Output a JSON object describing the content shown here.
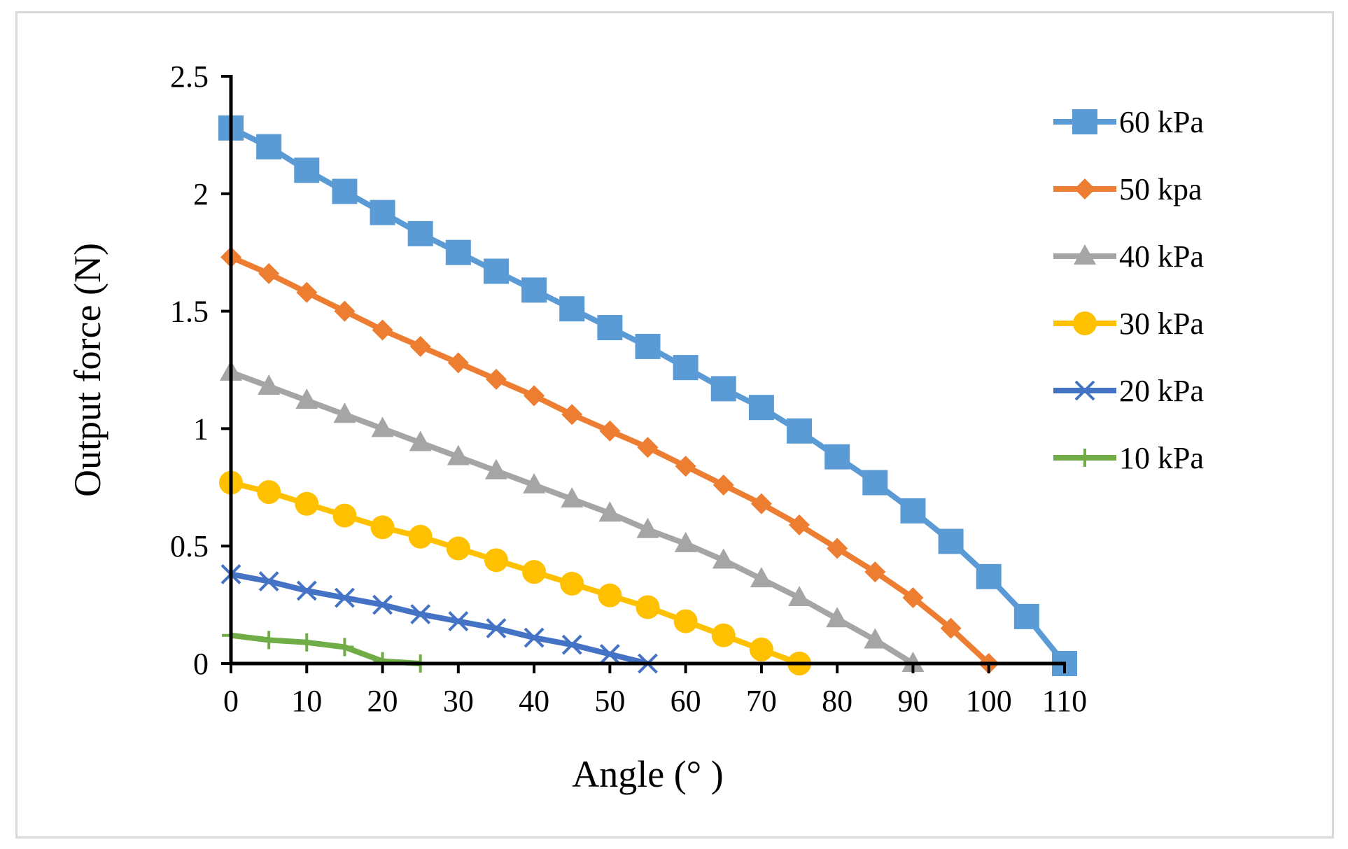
{
  "chart_data": {
    "type": "line",
    "title": "",
    "xlabel": "Angle (° )",
    "ylabel": "Output force (N)",
    "xlim": [
      0,
      110
    ],
    "ylim": [
      0,
      2.5
    ],
    "xticks": [
      0,
      10,
      20,
      30,
      40,
      50,
      60,
      70,
      80,
      90,
      100,
      110
    ],
    "xtick_labels": [
      "0",
      "10",
      "20",
      "30",
      "40",
      "50",
      "60",
      "70",
      "80",
      "90",
      "100",
      "110"
    ],
    "yticks": [
      0,
      0.5,
      1,
      1.5,
      2,
      2.5
    ],
    "ytick_labels": [
      "0",
      "0.5",
      "1",
      "1.5",
      "2",
      "2.5"
    ],
    "grid": false,
    "legend_position": "right",
    "series": [
      {
        "name": "60 kPa",
        "color": "#5b9bd5",
        "marker": "square",
        "x": [
          0,
          5,
          10,
          15,
          20,
          25,
          30,
          35,
          40,
          45,
          50,
          55,
          60,
          65,
          70,
          75,
          80,
          85,
          90,
          95,
          100,
          105,
          110
        ],
        "y": [
          2.28,
          2.2,
          2.1,
          2.01,
          1.92,
          1.83,
          1.75,
          1.67,
          1.59,
          1.51,
          1.43,
          1.35,
          1.26,
          1.17,
          1.09,
          0.99,
          0.88,
          0.77,
          0.65,
          0.52,
          0.37,
          0.2,
          0
        ]
      },
      {
        "name": "50 kpa",
        "color": "#ed7d31",
        "marker": "diamond",
        "x": [
          0,
          5,
          10,
          15,
          20,
          25,
          30,
          35,
          40,
          45,
          50,
          55,
          60,
          65,
          70,
          75,
          80,
          85,
          90,
          95,
          100
        ],
        "y": [
          1.73,
          1.66,
          1.58,
          1.5,
          1.42,
          1.35,
          1.28,
          1.21,
          1.14,
          1.06,
          0.99,
          0.92,
          0.84,
          0.76,
          0.68,
          0.59,
          0.49,
          0.39,
          0.28,
          0.15,
          0
        ]
      },
      {
        "name": "40 kPa",
        "color": "#a5a5a5",
        "marker": "triangle",
        "x": [
          0,
          5,
          10,
          15,
          20,
          25,
          30,
          35,
          40,
          45,
          50,
          55,
          60,
          65,
          70,
          75,
          80,
          85,
          90
        ],
        "y": [
          1.24,
          1.18,
          1.12,
          1.06,
          1.0,
          0.94,
          0.88,
          0.82,
          0.76,
          0.7,
          0.64,
          0.57,
          0.51,
          0.44,
          0.36,
          0.28,
          0.19,
          0.1,
          0
        ]
      },
      {
        "name": "30 kPa",
        "color": "#ffc000",
        "marker": "circle",
        "x": [
          0,
          5,
          10,
          15,
          20,
          25,
          30,
          35,
          40,
          45,
          50,
          55,
          60,
          65,
          70,
          75
        ],
        "y": [
          0.77,
          0.73,
          0.68,
          0.63,
          0.58,
          0.54,
          0.49,
          0.44,
          0.39,
          0.34,
          0.29,
          0.24,
          0.18,
          0.12,
          0.06,
          0
        ]
      },
      {
        "name": "20 kPa",
        "color": "#4472c4",
        "marker": "x",
        "x": [
          0,
          5,
          10,
          15,
          20,
          25,
          30,
          35,
          40,
          45,
          50,
          55
        ],
        "y": [
          0.38,
          0.35,
          0.31,
          0.28,
          0.25,
          0.21,
          0.18,
          0.15,
          0.11,
          0.08,
          0.04,
          0
        ]
      },
      {
        "name": "10 kPa",
        "color": "#70ad47",
        "marker": "plus",
        "x": [
          0,
          5,
          10,
          15,
          20,
          25
        ],
        "y": [
          0.12,
          0.1,
          0.09,
          0.07,
          0.01,
          0
        ]
      }
    ]
  }
}
